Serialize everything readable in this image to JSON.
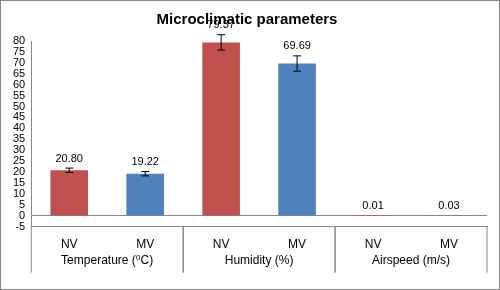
{
  "chart_data": {
    "type": "bar",
    "title": "Microclimatic parameters",
    "categories": [
      "NV",
      "MV",
      "NV",
      "MV",
      "NV",
      "MV"
    ],
    "group_labels": [
      "Temperature (⁰C)",
      "Humidity (%)",
      "Airspeed (m/s)"
    ],
    "values": [
      20.8,
      19.22,
      79.37,
      69.69,
      0.01,
      0.03
    ],
    "value_labels": [
      "20.80",
      "19.22",
      "79.37",
      "69.69",
      "0.01",
      "0.03"
    ],
    "errors": [
      1.0,
      1.0,
      3.5,
      3.5,
      0,
      0
    ],
    "colors": [
      "#c0504d",
      "#4f81bd",
      "#c0504d",
      "#4f81bd",
      "#c0504d",
      "#4f81bd"
    ],
    "ylim": [
      -5,
      80
    ],
    "yticks": [
      -5,
      0,
      5,
      10,
      15,
      20,
      25,
      30,
      35,
      40,
      45,
      50,
      55,
      60,
      65,
      70,
      75,
      80
    ],
    "grid": false,
    "data_labels": true
  }
}
